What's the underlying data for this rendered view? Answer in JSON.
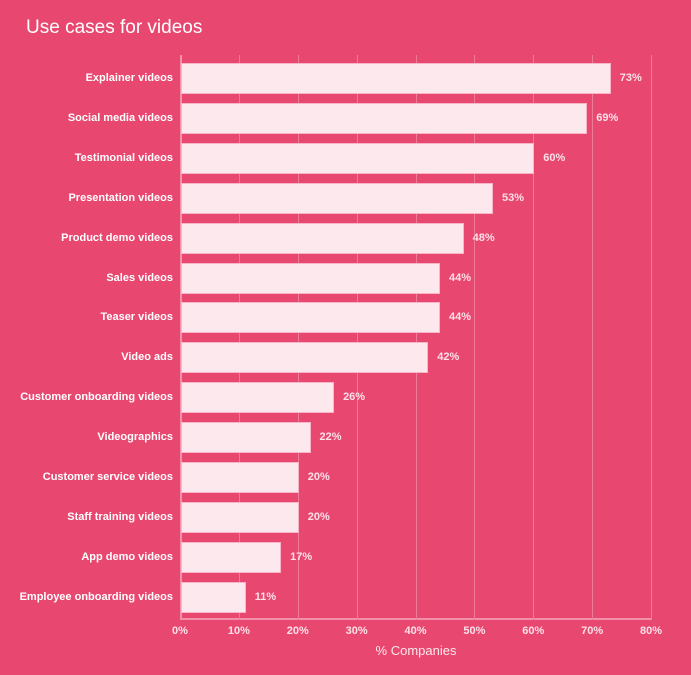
{
  "chart_data": {
    "type": "bar",
    "orientation": "horizontal",
    "title": "Use cases for videos",
    "xlabel": "% Companies",
    "ylabel": "",
    "xlim": [
      0,
      80
    ],
    "grid": true,
    "x_ticks": [
      "0%",
      "10%",
      "20%",
      "30%",
      "40%",
      "50%",
      "60%",
      "70%",
      "80%"
    ],
    "categories": [
      "Explainer videos",
      "Social media videos",
      "Testimonial videos",
      "Presentation videos",
      "Product demo videos",
      "Sales videos",
      "Teaser videos",
      "Video ads",
      "Customer onboarding videos",
      "Videographics",
      "Customer service videos",
      "Staff training videos",
      "App demo videos",
      "Employee onboarding videos"
    ],
    "values": [
      73,
      69,
      60,
      53,
      48,
      44,
      44,
      42,
      26,
      22,
      20,
      20,
      17,
      11
    ],
    "value_labels": [
      "73%",
      "69%",
      "60%",
      "53%",
      "48%",
      "44%",
      "44%",
      "42%",
      "26%",
      "22%",
      "20%",
      "20%",
      "17%",
      "11%"
    ]
  },
  "colors": {
    "background": "#e84870",
    "bar_fill": "#fde8ee",
    "bar_border": "#f7b6c8",
    "gridline": "#f07a99"
  }
}
